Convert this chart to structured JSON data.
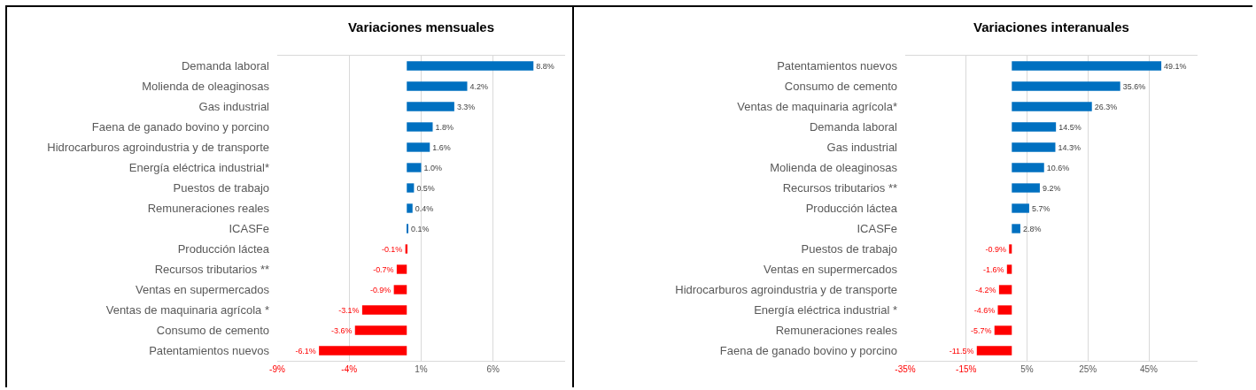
{
  "chart_data": [
    {
      "type": "bar",
      "orientation": "horizontal",
      "title": "Variaciones mensuales",
      "grid": "x",
      "categories": [
        "Demanda laboral",
        "Molienda de oleaginosas",
        "Gas industrial",
        "Faena de ganado bovino y porcino",
        "Hidrocarburos agroindustria y de transporte",
        "Energía eléctrica industrial*",
        "Puestos de trabajo",
        "Remuneraciones reales",
        "ICASFe",
        "Producción láctea",
        "Recursos tributarios **",
        "Ventas en supermercados",
        "Ventas de maquinaria agrícola *",
        "Consumo de cemento",
        "Patentamientos nuevos"
      ],
      "values": [
        8.8,
        4.2,
        3.3,
        1.8,
        1.6,
        1.0,
        0.5,
        0.4,
        0.1,
        -0.1,
        -0.7,
        -0.9,
        -3.1,
        -3.6,
        -6.1
      ],
      "colors": [
        "#0070c0",
        "#0070c0",
        "#0070c0",
        "#0070c0",
        "#0070c0",
        "#0070c0",
        "#0070c0",
        "#0070c0",
        "#0070c0",
        "#ff0000",
        "#ff0000",
        "#ff0000",
        "#ff0000",
        "#ff0000",
        "#ff0000"
      ],
      "value_labels": [
        "8.8%",
        "4.2%",
        "3.3%",
        "1.8%",
        "1.6%",
        "1.0%",
        "0.5%",
        "0.4%",
        "0.1%",
        "-0.1%",
        "-0.7%",
        "-0.9%",
        "-3.1%",
        "-3.6%",
        "-6.1%"
      ],
      "xlim": [
        -9,
        11
      ],
      "xticks": [
        {
          "value": -9,
          "label": "-9%"
        },
        {
          "value": -4,
          "label": "-4%"
        },
        {
          "value": 1,
          "label": "1%"
        },
        {
          "value": 6,
          "label": "6%"
        }
      ]
    },
    {
      "type": "bar",
      "orientation": "horizontal",
      "title": "Variaciones interanuales",
      "grid": "x",
      "categories": [
        "Patentamientos nuevos",
        "Consumo de cemento",
        "Ventas de maquinaria agrícola*",
        "Demanda laboral",
        "Gas industrial",
        "Molienda de oleaginosas",
        "Recursos tributarios **",
        "Producción láctea",
        "ICASFe",
        "Puestos de trabajo",
        "Ventas en supermercados",
        "Hidrocarburos agroindustria y de transporte",
        "Energía eléctrica industrial *",
        "Remuneraciones reales",
        "Faena de ganado bovino y porcino"
      ],
      "values": [
        49.1,
        35.6,
        26.3,
        14.5,
        14.3,
        10.6,
        9.2,
        5.7,
        2.8,
        -0.9,
        -1.6,
        -4.2,
        -4.6,
        -5.7,
        -11.5
      ],
      "colors": [
        "#0070c0",
        "#0070c0",
        "#0070c0",
        "#0070c0",
        "#0070c0",
        "#0070c0",
        "#0070c0",
        "#0070c0",
        "#0070c0",
        "#ff0000",
        "#ff0000",
        "#ff0000",
        "#ff0000",
        "#ff0000",
        "#ff0000"
      ],
      "value_labels": [
        "49.1%",
        "35.6%",
        "26.3%",
        "14.5%",
        "14.3%",
        "10.6%",
        "9.2%",
        "5.7%",
        "2.8%",
        "-0.9%",
        "-1.6%",
        "-4.2%",
        "-4.6%",
        "-5.7%",
        "-11.5%"
      ],
      "xlim": [
        -35,
        61
      ],
      "xticks": [
        {
          "value": -35,
          "label": "-35%"
        },
        {
          "value": -15,
          "label": "-15%"
        },
        {
          "value": 5,
          "label": "5%"
        },
        {
          "value": 25,
          "label": "25%"
        },
        {
          "value": 45,
          "label": "45%"
        }
      ]
    }
  ]
}
